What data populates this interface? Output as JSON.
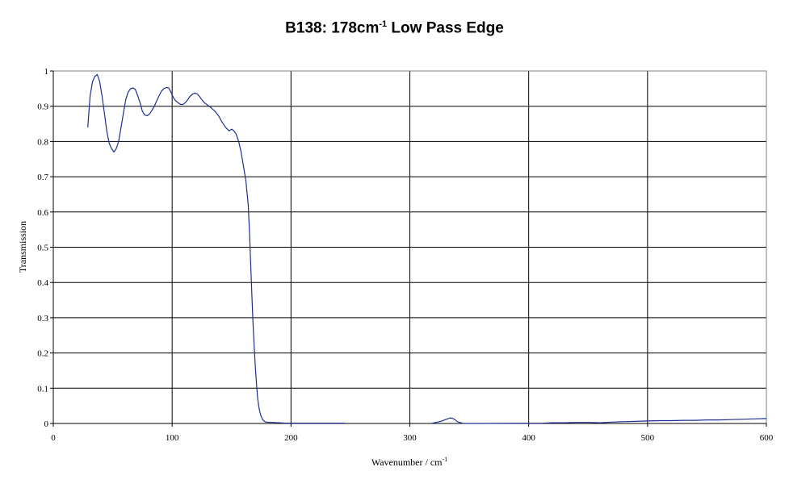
{
  "chart_data": {
    "type": "line",
    "title": "B138: 178cm-1 Low Pass Edge",
    "title_main": "B138: 178cm",
    "title_sup": "-1",
    "title_rest": " Low Pass Edge",
    "xlabel": "Wavenumber / cm-1",
    "xlabel_main": "Wavenumber / cm",
    "xlabel_sup": "-1",
    "ylabel": "Transmission",
    "xlim": [
      0,
      600
    ],
    "ylim": [
      0,
      1
    ],
    "x_ticks": [
      0,
      100,
      200,
      300,
      400,
      500,
      600
    ],
    "y_ticks": [
      0,
      0.1,
      0.2,
      0.3,
      0.4,
      0.5,
      0.6,
      0.7,
      0.8,
      0.9,
      1
    ],
    "grid": true,
    "line_color": "#1f2f8f",
    "series": [
      {
        "x": [
          29,
          31,
          33,
          35,
          37,
          39,
          41,
          43,
          45,
          47,
          49,
          51,
          53,
          55,
          57,
          59,
          61,
          63,
          65,
          67,
          69,
          71,
          73,
          75,
          77,
          79,
          81,
          83,
          85,
          87,
          89,
          91,
          93,
          95,
          97,
          99,
          101,
          103,
          105,
          107,
          109,
          111,
          113,
          115,
          117,
          119,
          121,
          123,
          125,
          127,
          130,
          133,
          136,
          139,
          142,
          145,
          148,
          150,
          152,
          154,
          156,
          158,
          160,
          162,
          164,
          165,
          166,
          167,
          168,
          169,
          170,
          171,
          172,
          173,
          174,
          175,
          176,
          177,
          178,
          179,
          180,
          182,
          184,
          186,
          188,
          190,
          195,
          200,
          210,
          220,
          230,
          240,
          245,
          300,
          318,
          322,
          326,
          330,
          334,
          337,
          340,
          344,
          346,
          412,
          420,
          430,
          440,
          450,
          460,
          470,
          480,
          490,
          500,
          510,
          520,
          530,
          540,
          550,
          560,
          570,
          580,
          590,
          600
        ],
        "y": [
          0.84,
          0.93,
          0.97,
          0.985,
          0.99,
          0.97,
          0.93,
          0.88,
          0.83,
          0.795,
          0.78,
          0.77,
          0.78,
          0.8,
          0.84,
          0.88,
          0.92,
          0.94,
          0.95,
          0.952,
          0.948,
          0.93,
          0.91,
          0.885,
          0.875,
          0.873,
          0.878,
          0.888,
          0.9,
          0.915,
          0.93,
          0.943,
          0.95,
          0.953,
          0.952,
          0.94,
          0.925,
          0.915,
          0.91,
          0.905,
          0.905,
          0.91,
          0.918,
          0.928,
          0.934,
          0.937,
          0.935,
          0.928,
          0.918,
          0.91,
          0.903,
          0.895,
          0.886,
          0.873,
          0.855,
          0.84,
          0.83,
          0.835,
          0.83,
          0.82,
          0.8,
          0.77,
          0.73,
          0.69,
          0.62,
          0.55,
          0.46,
          0.37,
          0.29,
          0.22,
          0.16,
          0.11,
          0.07,
          0.045,
          0.03,
          0.02,
          0.012,
          0.008,
          0.005,
          0.004,
          0.004,
          0.003,
          0.003,
          0.003,
          0.002,
          0.002,
          0.001,
          0.001,
          0.001,
          0.001,
          0.001,
          0.001,
          0.001,
          null,
          0.0,
          0.003,
          0.006,
          0.011,
          0.016,
          0.013,
          0.005,
          0.001,
          0.0,
          0.001,
          0.002,
          0.002,
          0.003,
          0.003,
          0.002,
          0.004,
          0.005,
          0.006,
          0.007,
          0.008,
          0.008,
          0.009,
          0.009,
          0.01,
          0.01,
          0.011,
          0.012,
          0.013,
          0.014
        ]
      }
    ]
  }
}
